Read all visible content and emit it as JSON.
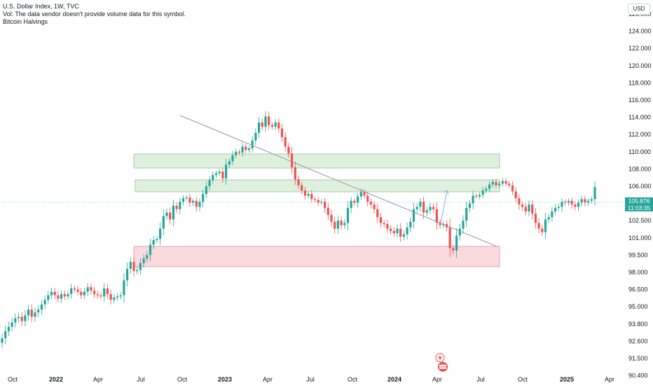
{
  "legend": {
    "title": "U.S. Dollar Index, 1W, TVC",
    "volume_note": "Vol: The data vendor doesn't provide volume data for this symbol.",
    "indicator": "Bitcoin Halvings"
  },
  "currency": "USD",
  "last_price": "105.876",
  "countdown": "11:03:35",
  "colors": {
    "up": "#26a69a",
    "down": "#ef5350",
    "resistance_zone": "#dff0df",
    "support_zone": "#fadadd",
    "trendline": "#9598a1"
  },
  "chart_data": {
    "type": "candlestick",
    "title": "U.S. Dollar Index, 1W, TVC",
    "y_ticks": [
      "126.000",
      "124.000",
      "122.000",
      "120.000",
      "118.000",
      "116.000",
      "114.000",
      "112.000",
      "110.000",
      "108.000",
      "106.000",
      "104.000",
      "102.500",
      "101.000",
      "99.500",
      "98.000",
      "96.500",
      "95.000",
      "93.800",
      "92.600",
      "91.500",
      "90.400"
    ],
    "x_ticks": [
      {
        "label": "Oct",
        "bold": false
      },
      {
        "label": "2022",
        "bold": true
      },
      {
        "label": "Apr",
        "bold": false
      },
      {
        "label": "Jul",
        "bold": false
      },
      {
        "label": "Oct",
        "bold": false
      },
      {
        "label": "2023",
        "bold": true
      },
      {
        "label": "Apr",
        "bold": false
      },
      {
        "label": "Jul",
        "bold": false
      },
      {
        "label": "Oct",
        "bold": false
      },
      {
        "label": "2024",
        "bold": true
      },
      {
        "label": "Apr",
        "bold": false
      },
      {
        "label": "Jul",
        "bold": false
      },
      {
        "label": "Oct",
        "bold": false
      },
      {
        "label": "2025",
        "bold": true
      },
      {
        "label": "Apr",
        "bold": false
      }
    ],
    "closes": [
      92.8,
      93.3,
      93.6,
      93.9,
      94.2,
      94.3,
      94.0,
      94.4,
      94.8,
      94.3,
      94.6,
      94.8,
      95.2,
      95.6,
      96.0,
      96.3,
      96.0,
      95.7,
      96.1,
      95.9,
      96.1,
      96.6,
      96.5,
      96.3,
      96.0,
      96.3,
      96.7,
      96.4,
      96.1,
      96.0,
      95.9,
      96.6,
      96.1,
      95.6,
      95.8,
      95.9,
      96.0,
      97.3,
      98.3,
      98.9,
      98.1,
      98.2,
      98.8,
      99.2,
      99.5,
      100.4,
      100.8,
      100.9,
      101.8,
      102.9,
      103.2,
      102.6,
      103.8,
      103.5,
      104.2,
      104.6,
      104.7,
      104.1,
      104.3,
      103.7,
      104.2,
      105.1,
      106.0,
      106.7,
      107.3,
      107.5,
      107.7,
      106.9,
      108.5,
      108.9,
      109.6,
      110.0,
      109.9,
      110.6,
      110.2,
      110.4,
      111.3,
      112.2,
      113.4,
      112.9,
      114.1,
      113.1,
      112.9,
      113.4,
      112.7,
      111.7,
      110.6,
      109.8,
      108.2,
      106.8,
      106.1,
      105.5,
      104.9,
      105.1,
      104.5,
      104.4,
      104.1,
      104.2,
      103.6,
      103.0,
      102.4,
      101.8,
      102.5,
      102.1,
      102.3,
      103.6,
      104.3,
      104.1,
      104.8,
      105.3,
      104.9,
      104.2,
      103.9,
      103.5,
      102.8,
      102.3,
      102.2,
      101.8,
      101.6,
      101.4,
      101.8,
      101.1,
      101.3,
      101.9,
      102.4,
      103.5,
      103.7,
      104.2,
      103.2,
      103.4,
      103.7,
      103.5,
      102.3,
      102.1,
      102.2,
      101.9,
      100.1,
      99.9,
      101.2,
      101.8,
      102.5,
      103.6,
      104.0,
      104.9,
      104.8,
      105.0,
      105.5,
      105.7,
      106.2,
      106.5,
      106.1,
      106.3,
      106.6,
      106.3,
      106.1,
      105.4,
      104.6,
      103.9,
      103.7,
      103.3,
      103.9,
      103.1,
      102.3,
      101.8,
      101.5,
      102.6,
      102.8,
      103.3,
      103.6,
      103.7,
      104.2,
      104.1,
      104.3,
      103.9,
      103.7,
      104.1,
      104.5,
      104.1,
      104.3,
      104.5,
      105.9
    ]
  }
}
